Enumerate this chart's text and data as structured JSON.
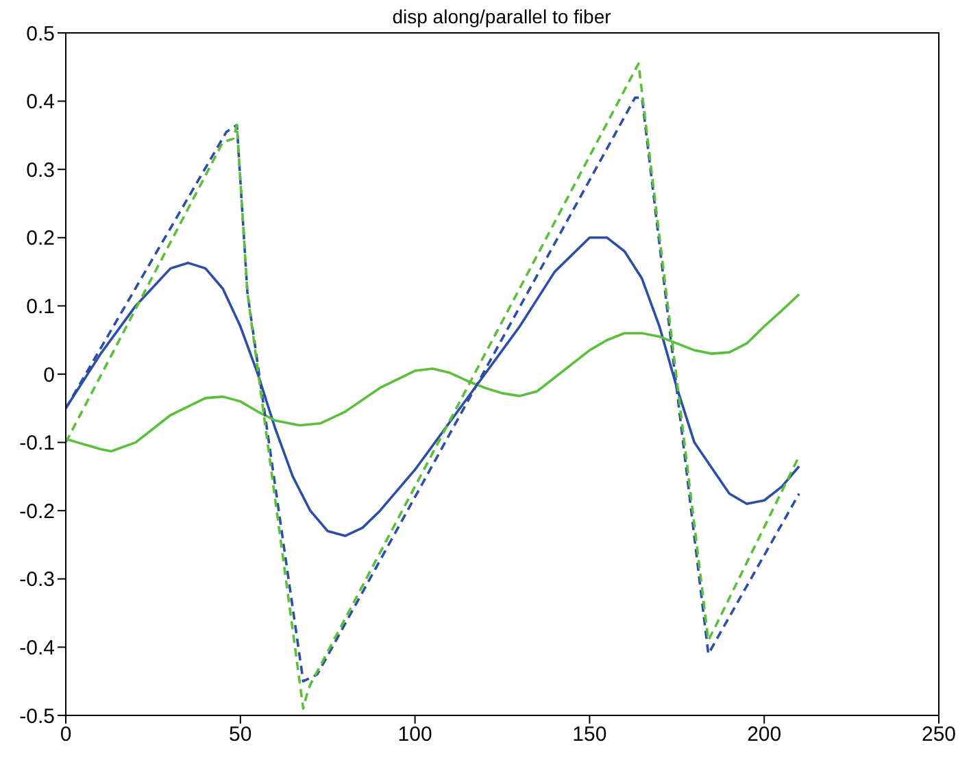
{
  "chart_data": {
    "type": "line",
    "title": "disp along/parallel to fiber",
    "xlim": [
      0,
      250
    ],
    "xticks": [
      0,
      50,
      100,
      150,
      200,
      250
    ],
    "ylim": [
      -0.5,
      0.5
    ],
    "yticks": [
      -0.5,
      -0.4,
      -0.3,
      -0.2,
      -0.1,
      0,
      0.1,
      0.2,
      0.3,
      0.4,
      0.5
    ],
    "marker": "none",
    "series": [
      {
        "color": "#2b4ea6",
        "line_style": "solid",
        "x": [
          0,
          10,
          20,
          30,
          35,
          40,
          45,
          50,
          55,
          60,
          65,
          70,
          75,
          80,
          85,
          90,
          100,
          110,
          120,
          130,
          140,
          150,
          155,
          160,
          165,
          170,
          175,
          180,
          190,
          195,
          200,
          205,
          210
        ],
        "values": [
          -0.05,
          0.03,
          0.1,
          0.155,
          0.163,
          0.155,
          0.125,
          0.07,
          0.0,
          -0.08,
          -0.15,
          -0.2,
          -0.23,
          -0.237,
          -0.225,
          -0.2,
          -0.14,
          -0.07,
          0.0,
          0.07,
          0.15,
          0.2,
          0.2,
          0.18,
          0.14,
          0.07,
          -0.02,
          -0.1,
          -0.175,
          -0.19,
          -0.185,
          -0.165,
          -0.135
        ]
      },
      {
        "color": "#5cbf3c",
        "line_style": "solid",
        "x": [
          0,
          10,
          13,
          20,
          30,
          40,
          45,
          50,
          55,
          60,
          67,
          73,
          80,
          90,
          100,
          105,
          110,
          115,
          120,
          125,
          130,
          135,
          140,
          150,
          155,
          160,
          165,
          170,
          175,
          180,
          185,
          190,
          195,
          200,
          205,
          210
        ],
        "values": [
          -0.095,
          -0.11,
          -0.113,
          -0.1,
          -0.06,
          -0.035,
          -0.033,
          -0.04,
          -0.055,
          -0.068,
          -0.075,
          -0.072,
          -0.055,
          -0.02,
          0.005,
          0.008,
          0.002,
          -0.01,
          -0.02,
          -0.028,
          -0.032,
          -0.025,
          -0.005,
          0.035,
          0.05,
          0.06,
          0.06,
          0.055,
          0.045,
          0.035,
          0.03,
          0.032,
          0.045,
          0.07,
          0.093,
          0.117
        ]
      },
      {
        "color": "#2b4ea6",
        "line_style": "dashed",
        "x": [
          0,
          46,
          49,
          52,
          68,
          72,
          163,
          165,
          184,
          210
        ],
        "values": [
          -0.05,
          0.355,
          0.365,
          0.12,
          -0.45,
          -0.44,
          0.405,
          0.405,
          -0.41,
          -0.175
        ]
      },
      {
        "color": "#5cbf3c",
        "line_style": "dashed",
        "x": [
          0,
          45,
          48,
          49,
          52,
          68,
          69,
          70,
          164,
          184,
          186,
          210
        ],
        "values": [
          -0.1,
          0.34,
          0.345,
          0.365,
          0.12,
          -0.49,
          -0.47,
          -0.455,
          0.455,
          -0.39,
          -0.37,
          -0.12
        ]
      }
    ]
  }
}
